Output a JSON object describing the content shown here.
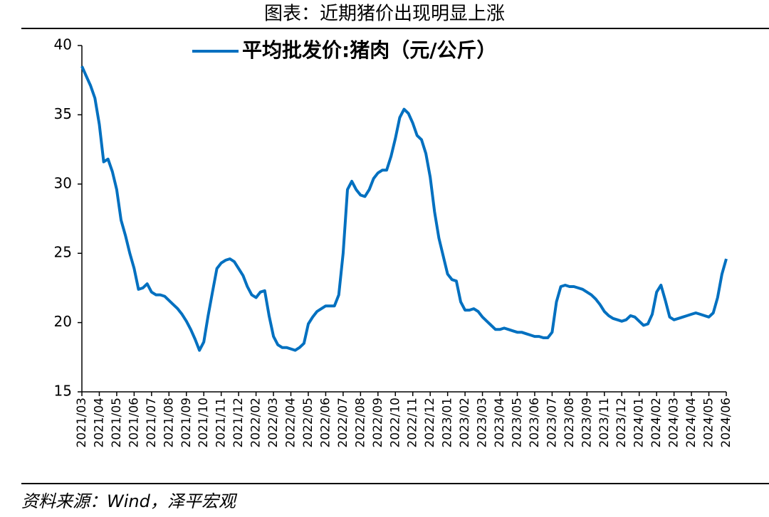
{
  "chart_data": {
    "type": "line",
    "title": "图表：近期猪价出现明显上涨",
    "source": "资料来源：Wind，泽平宏观",
    "categories": [
      "2021/03",
      null,
      null,
      null,
      "2021/04",
      null,
      null,
      null,
      "2021/05",
      null,
      null,
      null,
      "2021/06",
      null,
      null,
      null,
      "2021/07",
      null,
      null,
      null,
      "2021/08",
      null,
      null,
      null,
      "2021/09",
      null,
      null,
      null,
      "2021/10",
      null,
      null,
      null,
      "2021/11",
      null,
      null,
      null,
      "2021/12",
      null,
      null,
      null,
      "2022/02",
      null,
      null,
      null,
      "2022/03",
      null,
      null,
      null,
      "2022/04",
      null,
      null,
      null,
      "2022/05",
      null,
      null,
      null,
      "2022/06",
      null,
      null,
      null,
      "2022/07",
      null,
      null,
      null,
      "2022/08",
      null,
      null,
      null,
      "2022/09",
      null,
      null,
      null,
      "2022/10",
      null,
      null,
      null,
      "2022/11",
      null,
      null,
      null,
      "2022/12",
      null,
      null,
      null,
      "2023/01",
      null,
      null,
      null,
      "2023/02",
      null,
      null,
      null,
      "2023/03",
      null,
      null,
      null,
      "2023/04",
      null,
      null,
      null,
      "2023/05",
      null,
      null,
      null,
      "2023/06",
      null,
      null,
      null,
      "2023/07",
      null,
      null,
      null,
      "2023/08",
      null,
      null,
      null,
      "2023/09",
      null,
      null,
      null,
      "2023/11",
      null,
      null,
      null,
      "2023/12",
      null,
      null,
      null,
      "2024/01",
      null,
      null,
      null,
      "2024/02",
      null,
      null,
      null,
      "2024/03",
      null,
      null,
      null,
      "2024/04",
      null,
      null,
      null,
      "2024/05",
      null,
      null,
      null,
      "2024/06"
    ],
    "series": [
      {
        "name": "平均批发价:猪肉（元/公斤）",
        "color": "#0070C0",
        "values": [
          38.5,
          37.8,
          37.1,
          36.2,
          34.3,
          31.6,
          31.8,
          30.9,
          29.6,
          27.4,
          26.3,
          25,
          23.9,
          22.4,
          22.5,
          22.8,
          22.2,
          22,
          22,
          21.9,
          21.6,
          21.3,
          21,
          20.6,
          20.1,
          19.5,
          18.8,
          18,
          18.6,
          20.5,
          22.2,
          23.9,
          24.3,
          24.5,
          24.6,
          24.4,
          23.9,
          23.4,
          22.6,
          22,
          21.8,
          22.2,
          22.3,
          20.5,
          19,
          18.4,
          18.2,
          18.2,
          18.1,
          18,
          18.2,
          18.5,
          19.9,
          20.4,
          20.8,
          21,
          21.2,
          21.2,
          21.2,
          22,
          25,
          29.6,
          30.2,
          29.6,
          29.2,
          29.1,
          29.6,
          30.4,
          30.8,
          31,
          31,
          32,
          33.3,
          34.8,
          35.4,
          35.1,
          34.4,
          33.5,
          33.2,
          32.2,
          30.5,
          28,
          26.1,
          24.8,
          23.5,
          23.1,
          23,
          21.5,
          20.9,
          20.9,
          21,
          20.8,
          20.4,
          20.1,
          19.8,
          19.5,
          19.5,
          19.6,
          19.5,
          19.4,
          19.3,
          19.3,
          19.2,
          19.1,
          19,
          19,
          18.9,
          18.9,
          19.3,
          21.5,
          22.6,
          22.7,
          22.6,
          22.6,
          22.5,
          22.4,
          22.2,
          22,
          21.7,
          21.3,
          20.8,
          20.5,
          20.3,
          20.2,
          20.1,
          20.2,
          20.5,
          20.4,
          20.1,
          19.8,
          19.9,
          20.6,
          22.2,
          22.7,
          21.6,
          20.4,
          20.2,
          20.3,
          20.4,
          20.5,
          20.6,
          20.7,
          20.6,
          20.5,
          20.4,
          20.7,
          21.8,
          23.5,
          24.6
        ]
      }
    ],
    "ylim": [
      15,
      40
    ],
    "yticks": [
      15,
      20,
      25,
      30,
      35,
      40
    ]
  }
}
